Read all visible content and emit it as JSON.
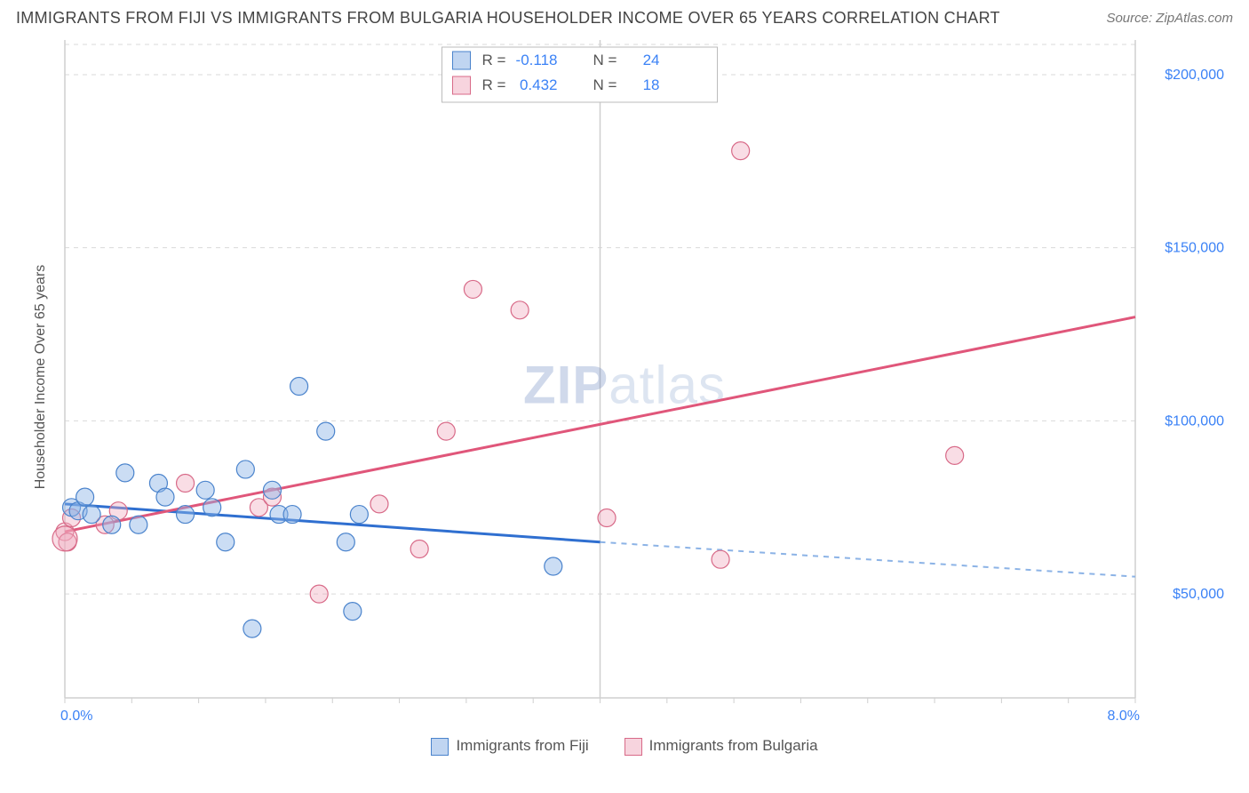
{
  "header": {
    "title": "IMMIGRANTS FROM FIJI VS IMMIGRANTS FROM BULGARIA HOUSEHOLDER INCOME OVER 65 YEARS CORRELATION CHART",
    "source": "Source: ZipAtlas.com"
  },
  "chart": {
    "type": "scatter",
    "ylabel": "Householder Income Over 65 years",
    "watermark_a": "ZIP",
    "watermark_b": "atlas",
    "xlim": [
      0,
      8
    ],
    "ylim": [
      20000,
      210000
    ],
    "x_ticks": [
      {
        "v": 0,
        "label": "0.0%"
      },
      {
        "v": 8,
        "label": "8.0%"
      }
    ],
    "y_ticks": [
      {
        "v": 50000,
        "label": "$50,000"
      },
      {
        "v": 100000,
        "label": "$100,000"
      },
      {
        "v": 150000,
        "label": "$150,000"
      },
      {
        "v": 200000,
        "label": "$200,000"
      }
    ],
    "x_major_guides": [
      4,
      8
    ],
    "x_mid_guide": 4,
    "plot_background": "#ffffff",
    "grid_color": "#d9d9d9",
    "marker_radius": 10,
    "series": {
      "fiji": {
        "label": "Immigrants from Fiji",
        "color_fill": "rgba(140,179,230,0.45)",
        "color_stroke": "#4a83cc",
        "R": -0.118,
        "N": 24,
        "trend": {
          "x0": 0,
          "y0": 76000,
          "x1": 4,
          "y1": 65000,
          "dash_x1": 8,
          "dash_y1": 55000
        },
        "points": [
          [
            0.05,
            75000
          ],
          [
            0.1,
            74000
          ],
          [
            0.15,
            78000
          ],
          [
            0.2,
            73000
          ],
          [
            0.35,
            70000
          ],
          [
            0.45,
            85000
          ],
          [
            0.55,
            70000
          ],
          [
            0.7,
            82000
          ],
          [
            0.75,
            78000
          ],
          [
            0.9,
            73000
          ],
          [
            1.05,
            80000
          ],
          [
            1.1,
            75000
          ],
          [
            1.2,
            65000
          ],
          [
            1.35,
            86000
          ],
          [
            1.4,
            40000
          ],
          [
            1.55,
            80000
          ],
          [
            1.6,
            73000
          ],
          [
            1.7,
            73000
          ],
          [
            1.75,
            110000
          ],
          [
            1.95,
            97000
          ],
          [
            2.1,
            65000
          ],
          [
            2.15,
            45000
          ],
          [
            2.2,
            73000
          ],
          [
            3.65,
            58000
          ]
        ]
      },
      "bulgaria": {
        "label": "Immigrants from Bulgaria",
        "color_fill": "rgba(240,170,190,0.40)",
        "color_stroke": "#d86a88",
        "R": 0.432,
        "N": 18,
        "trend": {
          "x0": 0,
          "y0": 68000,
          "x1": 8,
          "y1": 130000
        },
        "points": [
          [
            0.0,
            68000
          ],
          [
            0.05,
            72000
          ],
          [
            0.3,
            70000
          ],
          [
            0.4,
            74000
          ],
          [
            0.9,
            82000
          ],
          [
            1.45,
            75000
          ],
          [
            1.55,
            78000
          ],
          [
            1.9,
            50000
          ],
          [
            2.35,
            76000
          ],
          [
            2.65,
            63000
          ],
          [
            2.85,
            97000
          ],
          [
            3.05,
            138000
          ],
          [
            3.4,
            132000
          ],
          [
            4.05,
            72000
          ],
          [
            4.9,
            60000
          ],
          [
            5.05,
            178000
          ],
          [
            6.65,
            90000
          ],
          [
            0.02,
            65000
          ]
        ]
      }
    },
    "stats_legend": {
      "rows": [
        {
          "swatch": "blue",
          "r_label": "R =",
          "r_val": "-0.118",
          "n_label": "N =",
          "n_val": "24"
        },
        {
          "swatch": "pink",
          "r_label": "R =",
          "r_val": "0.432",
          "n_label": "N =",
          "n_val": "18"
        }
      ]
    }
  }
}
